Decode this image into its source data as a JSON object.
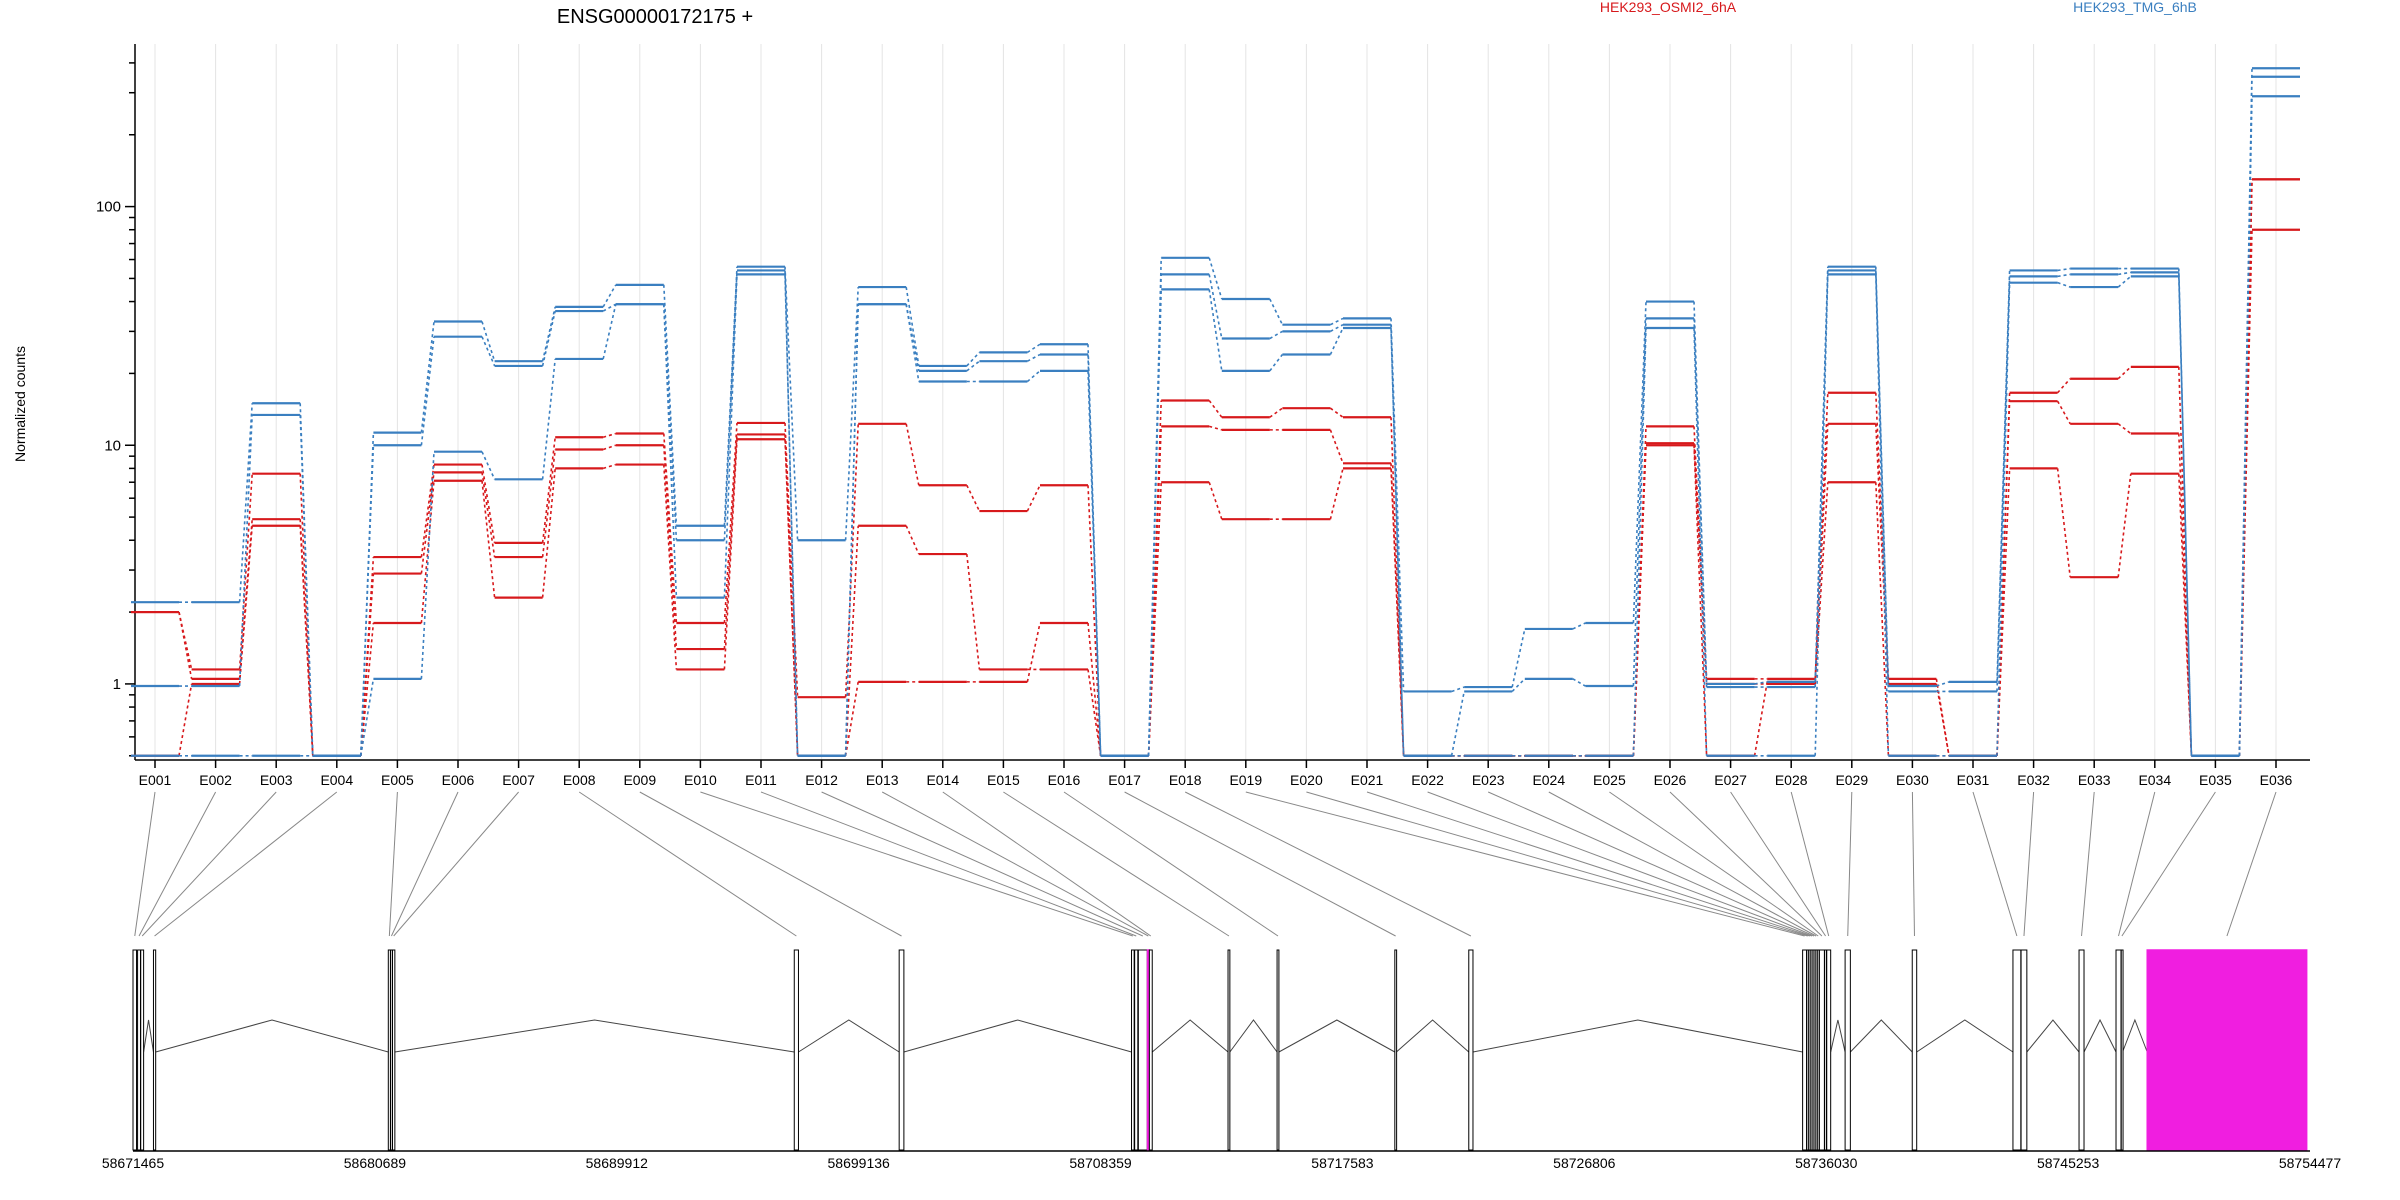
{
  "chart_data": {
    "type": "line",
    "title": "ENSG00000172175 +",
    "ylabel": "Normalized counts",
    "xlabel": "",
    "yscale": "log",
    "ylim": [
      0.48,
      480
    ],
    "y_ticks": [
      {
        "value": 1,
        "label": "1"
      },
      {
        "value": 10,
        "label": "10"
      },
      {
        "value": 100,
        "label": "100"
      }
    ],
    "zero_floor_value": 0.5,
    "legend": [
      {
        "name": "HEK293_OSMI2_6hA",
        "color": "#d7191c"
      },
      {
        "name": "HEK293_TMG_6hB",
        "color": "#3a7fc0"
      }
    ],
    "categories": [
      "E001",
      "E002",
      "E003",
      "E004",
      "E005",
      "E006",
      "E007",
      "E008",
      "E009",
      "E010",
      "E011",
      "E012",
      "E013",
      "E014",
      "E015",
      "E016",
      "E017",
      "E018",
      "E019",
      "E020",
      "E021",
      "E022",
      "E023",
      "E024",
      "E025",
      "E026",
      "E027",
      "E028",
      "E029",
      "E030",
      "E031",
      "E032",
      "E033",
      "E034",
      "E035",
      "E036"
    ],
    "series": [
      {
        "group": "HEK293_OSMI2_6hA",
        "color": "#d7191c",
        "values": [
          2.0,
          1.15,
          7.6,
          0.5,
          3.4,
          8.3,
          3.9,
          10.8,
          11.2,
          1.8,
          12.4,
          0.88,
          12.3,
          6.8,
          5.3,
          6.8,
          0.5,
          15.4,
          13.1,
          14.3,
          13.1,
          0.5,
          0.5,
          0.5,
          0.5,
          12.0,
          1.05,
          1.05,
          16.6,
          1.05,
          0.5,
          16.6,
          19.0,
          21.3,
          0.5,
          130
        ]
      },
      {
        "group": "HEK293_OSMI2_6hA",
        "color": "#d7191c",
        "values": [
          2.0,
          1.05,
          4.9,
          0.5,
          2.9,
          7.7,
          3.4,
          9.6,
          10.0,
          1.4,
          11.1,
          0.5,
          4.6,
          3.5,
          1.15,
          1.15,
          0.5,
          12.0,
          11.6,
          11.6,
          8.4,
          0.5,
          0.5,
          0.5,
          0.5,
          10.2,
          1.0,
          1.0,
          12.3,
          1.0,
          0.5,
          15.3,
          12.3,
          11.2,
          0.5,
          130
        ]
      },
      {
        "group": "HEK293_OSMI2_6hA",
        "color": "#d7191c",
        "values": [
          0.5,
          1.0,
          4.6,
          0.5,
          1.8,
          7.1,
          2.3,
          8.0,
          8.3,
          1.15,
          10.6,
          0.5,
          1.02,
          1.02,
          1.02,
          1.8,
          0.5,
          7.0,
          4.9,
          4.9,
          8.0,
          0.5,
          0.5,
          0.5,
          0.5,
          10.0,
          0.5,
          1.02,
          7.0,
          0.5,
          0.5,
          8.0,
          2.8,
          7.6,
          0.5,
          80
        ]
      },
      {
        "group": "HEK293_TMG_6hB",
        "color": "#3a7fc0",
        "values": [
          2.2,
          2.2,
          15.0,
          0.5,
          11.3,
          33.0,
          22.5,
          38.0,
          47.0,
          4.6,
          56.0,
          4.0,
          46.0,
          21.5,
          24.5,
          26.5,
          0.5,
          61.0,
          41.0,
          32.0,
          34.0,
          0.93,
          0.97,
          1.7,
          1.8,
          40.0,
          1.0,
          1.02,
          56.0,
          0.98,
          1.02,
          54.0,
          55.0,
          55.0,
          0.5,
          380
        ]
      },
      {
        "group": "HEK293_TMG_6hB",
        "color": "#3a7fc0",
        "values": [
          0.98,
          0.98,
          13.4,
          0.5,
          10.0,
          28.5,
          21.5,
          36.5,
          39.0,
          4.0,
          54.0,
          0.5,
          39.0,
          20.5,
          22.5,
          24.0,
          0.5,
          52.0,
          28.0,
          30.0,
          32.0,
          0.5,
          0.93,
          1.05,
          0.98,
          34.0,
          0.97,
          0.97,
          54.0,
          0.93,
          0.93,
          51.0,
          52.0,
          53.0,
          0.5,
          350
        ]
      },
      {
        "group": "HEK293_TMG_6hB",
        "color": "#3a7fc0",
        "values": [
          0.5,
          0.5,
          0.5,
          0.5,
          1.05,
          9.4,
          7.2,
          23.0,
          39.0,
          2.3,
          52.0,
          0.5,
          39.0,
          18.5,
          18.5,
          20.5,
          0.5,
          45.0,
          20.5,
          24.0,
          31.0,
          0.5,
          0.5,
          0.5,
          0.5,
          31.0,
          0.5,
          0.5,
          52.0,
          0.5,
          0.5,
          48.0,
          46.0,
          51.0,
          0.5,
          290
        ]
      }
    ],
    "genomic_axis": {
      "ticks": [
        "58671465",
        "58680689",
        "58689912",
        "58699136",
        "58708359",
        "58717583",
        "58726806",
        "58736030",
        "58745253",
        "58754477"
      ],
      "tick_values": [
        58671465,
        58680689,
        58689912,
        58699136,
        58708359,
        58717583,
        58726806,
        58736030,
        58745253,
        58754477
      ],
      "start": 58671465,
      "end": 58754477
    },
    "gene_model": {
      "highlight_color": "#f01ee0",
      "exons": [
        {
          "id": "E001",
          "start": 58671465,
          "end": 58671600,
          "highlight": false
        },
        {
          "id": "E002",
          "start": 58671640,
          "end": 58671750,
          "highlight": false
        },
        {
          "id": "E003",
          "start": 58671760,
          "end": 58671870,
          "highlight": false
        },
        {
          "id": "E004",
          "start": 58672245,
          "end": 58672330,
          "highlight": false
        },
        {
          "id": "E005",
          "start": 58681200,
          "end": 58681280,
          "highlight": false
        },
        {
          "id": "E006",
          "start": 58681290,
          "end": 58681350,
          "highlight": false
        },
        {
          "id": "E007",
          "start": 58681360,
          "end": 58681450,
          "highlight": false
        },
        {
          "id": "E008",
          "start": 58696680,
          "end": 58696840,
          "highlight": false
        },
        {
          "id": "E009",
          "start": 58700680,
          "end": 58700860,
          "highlight": false
        },
        {
          "id": "E010",
          "start": 58709540,
          "end": 58709640,
          "highlight": false
        },
        {
          "id": "E011",
          "start": 58709660,
          "end": 58709780,
          "highlight": false
        },
        {
          "id": "E012",
          "start": 58709800,
          "end": 58710140,
          "highlight": false
        },
        {
          "id": "E013",
          "start": 58710150,
          "end": 58710210,
          "highlight": true
        },
        {
          "id": "E014",
          "start": 58710220,
          "end": 58710330,
          "highlight": false
        },
        {
          "id": "E015",
          "start": 58713220,
          "end": 58713290,
          "highlight": false
        },
        {
          "id": "E016",
          "start": 58715090,
          "end": 58715160,
          "highlight": false
        },
        {
          "id": "E017",
          "start": 58719580,
          "end": 58719640,
          "highlight": false
        },
        {
          "id": "E018",
          "start": 58722400,
          "end": 58722560,
          "highlight": false
        },
        {
          "id": "E019",
          "start": 58735130,
          "end": 58735280,
          "highlight": false
        },
        {
          "id": "E020",
          "start": 58735290,
          "end": 58735360,
          "highlight": false
        },
        {
          "id": "E021",
          "start": 58735370,
          "end": 58735440,
          "highlight": false
        },
        {
          "id": "E022",
          "start": 58735450,
          "end": 58735520,
          "highlight": false
        },
        {
          "id": "E023",
          "start": 58735530,
          "end": 58735600,
          "highlight": false
        },
        {
          "id": "E024",
          "start": 58735610,
          "end": 58735680,
          "highlight": false
        },
        {
          "id": "E025",
          "start": 58735690,
          "end": 58735760,
          "highlight": false
        },
        {
          "id": "E026",
          "start": 58735770,
          "end": 58735960,
          "highlight": false
        },
        {
          "id": "E027",
          "start": 58735970,
          "end": 58736040,
          "highlight": false
        },
        {
          "id": "E028",
          "start": 58736050,
          "end": 58736200,
          "highlight": false
        },
        {
          "id": "E029",
          "start": 58736750,
          "end": 58736950,
          "highlight": false
        },
        {
          "id": "E030",
          "start": 58739310,
          "end": 58739480,
          "highlight": false
        },
        {
          "id": "E031",
          "start": 58743150,
          "end": 58743450,
          "highlight": false
        },
        {
          "id": "E032",
          "start": 58743460,
          "end": 58743680,
          "highlight": false
        },
        {
          "id": "E033",
          "start": 58745670,
          "end": 58745860,
          "highlight": false
        },
        {
          "id": "E034",
          "start": 58747080,
          "end": 58747270,
          "highlight": false
        },
        {
          "id": "E035",
          "start": 58747280,
          "end": 58747330,
          "highlight": false
        },
        {
          "id": "E036",
          "start": 58748270,
          "end": 58754350,
          "highlight": true
        }
      ]
    }
  }
}
